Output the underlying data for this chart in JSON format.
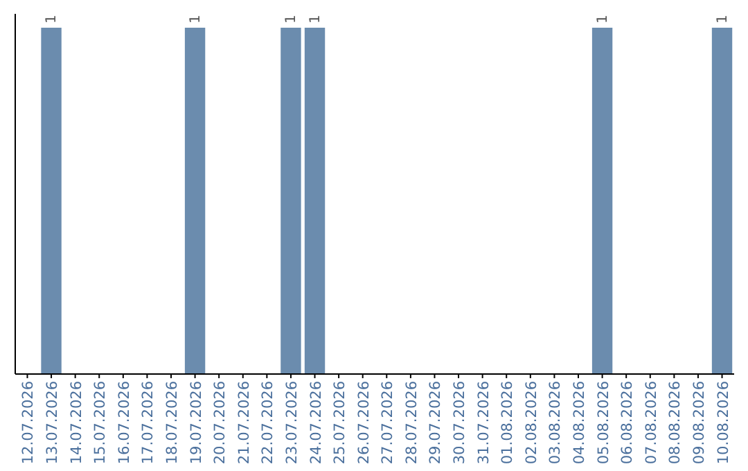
{
  "chart_data": {
    "type": "bar",
    "categories": [
      "12.07.2026",
      "13.07.2026",
      "14.07.2026",
      "15.07.2026",
      "16.07.2026",
      "17.07.2026",
      "18.07.2026",
      "19.07.2026",
      "20.07.2026",
      "21.07.2026",
      "22.07.2026",
      "23.07.2026",
      "24.07.2026",
      "25.07.2026",
      "26.07.2026",
      "27.07.2026",
      "28.07.2026",
      "29.07.2026",
      "30.07.2026",
      "31.07.2026",
      "01.08.2026",
      "02.08.2026",
      "03.08.2026",
      "04.08.2026",
      "05.08.2026",
      "06.08.2026",
      "07.08.2026",
      "08.08.2026",
      "09.08.2026",
      "10.08.2026"
    ],
    "values": [
      0,
      1,
      0,
      0,
      0,
      0,
      0,
      1,
      0,
      0,
      0,
      1,
      1,
      0,
      0,
      0,
      0,
      0,
      0,
      0,
      0,
      0,
      0,
      0,
      1,
      0,
      0,
      0,
      0,
      1
    ],
    "value_labels": [
      null,
      "1",
      null,
      null,
      null,
      null,
      null,
      "1",
      null,
      null,
      null,
      "1",
      "1",
      null,
      null,
      null,
      null,
      null,
      null,
      null,
      null,
      null,
      null,
      null,
      "1",
      null,
      null,
      null,
      null,
      "1"
    ],
    "color": "#6b8cae",
    "ylim": [
      0,
      1
    ],
    "tick_labels": "x"
  }
}
